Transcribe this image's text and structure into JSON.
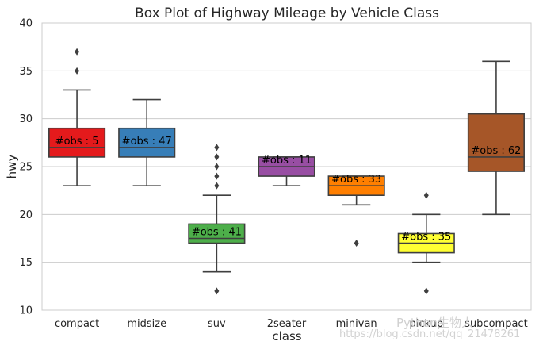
{
  "chart_data": {
    "type": "box",
    "title": "Box Plot of Highway Mileage by Vehicle Class",
    "xlabel": "class",
    "ylabel": "hwy",
    "ylim": [
      10,
      40
    ],
    "yticks": [
      10,
      15,
      20,
      25,
      30,
      35,
      40
    ],
    "grid": "horizontal",
    "categories": [
      "compact",
      "midsize",
      "suv",
      "2seater",
      "minivan",
      "pickup",
      "subcompact"
    ],
    "boxes": [
      {
        "name": "compact",
        "label": "#obs : 5",
        "color": "#e41a1c",
        "whisker_low": 23,
        "q1": 26,
        "median": 27,
        "q3": 29,
        "whisker_high": 33,
        "outliers": [
          35,
          37
        ]
      },
      {
        "name": "midsize",
        "label": "#obs : 47",
        "color": "#377eb8",
        "whisker_low": 23,
        "q1": 26,
        "median": 27,
        "q3": 29,
        "whisker_high": 32,
        "outliers": []
      },
      {
        "name": "suv",
        "label": "#obs : 41",
        "color": "#4daf4a",
        "whisker_low": 14,
        "q1": 17,
        "median": 17.5,
        "q3": 19,
        "whisker_high": 22,
        "outliers": [
          12,
          23,
          24,
          25,
          26,
          27
        ]
      },
      {
        "name": "2seater",
        "label": "#obs : 11",
        "color": "#984ea3",
        "whisker_low": 23,
        "q1": 24,
        "median": 25,
        "q3": 26,
        "whisker_high": 26,
        "outliers": []
      },
      {
        "name": "minivan",
        "label": "#obs : 33",
        "color": "#ff7f00",
        "whisker_low": 21,
        "q1": 22,
        "median": 23,
        "q3": 24,
        "whisker_high": 24,
        "outliers": [
          17
        ]
      },
      {
        "name": "pickup",
        "label": "#obs : 35",
        "color": "#ffff33",
        "whisker_low": 15,
        "q1": 16,
        "median": 17,
        "q3": 18,
        "whisker_high": 20,
        "outliers": [
          12,
          22
        ]
      },
      {
        "name": "subcompact",
        "label": "#obs : 62",
        "color": "#a65628",
        "whisker_low": 20,
        "q1": 24.5,
        "median": 26,
        "q3": 30.5,
        "whisker_high": 36,
        "outliers": []
      }
    ]
  },
  "watermark": {
    "logo_text": "Python生物人",
    "url_text": "https://blog.csdn.net/qq_21478261"
  }
}
